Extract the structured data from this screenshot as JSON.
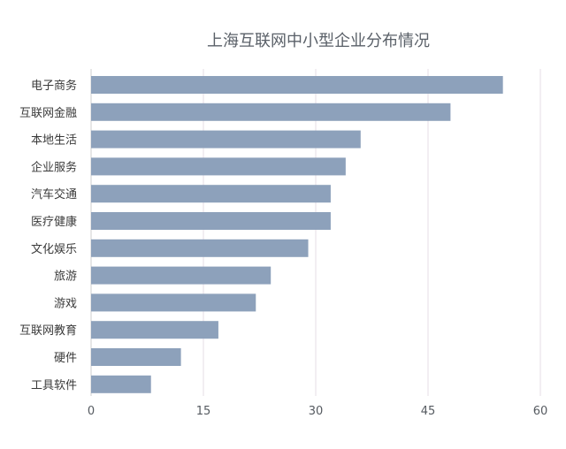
{
  "chart_data": {
    "type": "bar",
    "orientation": "horizontal",
    "title": "上海互联网中小型企业分布情况",
    "categories": [
      "电子商务",
      "互联网金融",
      "本地生活",
      "企业服务",
      "汽车交通",
      "医疗健康",
      "文化娱乐",
      "旅游",
      "游戏",
      "互联网教育",
      "硬件",
      "工具软件"
    ],
    "values": [
      55,
      48,
      36,
      34,
      32,
      32,
      29,
      24,
      22,
      17,
      12,
      8
    ],
    "xlim": [
      0,
      60
    ],
    "xticks": [
      0,
      15,
      30,
      45,
      60
    ],
    "xlabel": "",
    "ylabel": "",
    "grid": true,
    "legend": "none",
    "colors": {
      "bar": "#8da1bb",
      "grid": "#e6dde6"
    }
  }
}
